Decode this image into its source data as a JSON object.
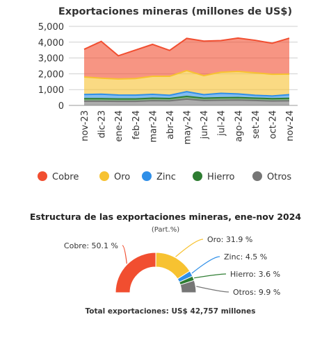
{
  "chart_data": [
    {
      "type": "area",
      "stacked": true,
      "title": "Exportaciones mineras (millones de US$)",
      "xlabel": "",
      "ylabel": "",
      "ylim": [
        0,
        5000
      ],
      "yticks": [
        0,
        1000,
        2000,
        3000,
        4000,
        5000
      ],
      "ytick_labels": [
        "0",
        "1,000",
        "2,000",
        "3,000",
        "4,000",
        "5,000"
      ],
      "grid": true,
      "legend_position": "bottom",
      "categories": [
        "nov-23",
        "dic-23",
        "ene-24",
        "feb-24",
        "mar-24",
        "abr-24",
        "may-24",
        "jun-24",
        "jul-24",
        "ago-24",
        "set-24",
        "oct-24",
        "nov-24"
      ],
      "series": [
        {
          "name": "Otros",
          "color": "#767676",
          "values": [
            270,
            270,
            260,
            260,
            300,
            290,
            400,
            310,
            330,
            340,
            310,
            280,
            290
          ]
        },
        {
          "name": "Hierro",
          "color": "#2e7d32",
          "values": [
            160,
            160,
            150,
            150,
            160,
            150,
            170,
            150,
            160,
            160,
            150,
            150,
            160
          ]
        },
        {
          "name": "Zinc",
          "color": "#2f8fe8",
          "values": [
            260,
            280,
            250,
            240,
            240,
            200,
            300,
            220,
            280,
            230,
            180,
            170,
            230
          ]
        },
        {
          "name": "Oro",
          "color": "#f7c231",
          "values": [
            1110,
            1010,
            1010,
            1050,
            1140,
            1200,
            1330,
            1200,
            1330,
            1420,
            1420,
            1370,
            1300
          ]
        },
        {
          "name": "Cobre",
          "color": "#f14e30",
          "values": [
            1750,
            2330,
            1470,
            1800,
            2020,
            1640,
            2040,
            2190,
            2000,
            2110,
            2060,
            1960,
            2270
          ]
        }
      ]
    },
    {
      "type": "pie",
      "variant": "half-donut",
      "title": "Estructura de las exportaciones mineras, ene-nov 2024",
      "subtitle": "(Part.%)",
      "slices": [
        {
          "name": "Cobre",
          "value": 50.1,
          "label": "Cobre: 50.1 %",
          "color": "#f14e30"
        },
        {
          "name": "Oro",
          "value": 31.9,
          "label": "Oro: 31.9 %",
          "color": "#f7c231"
        },
        {
          "name": "Zinc",
          "value": 4.5,
          "label": "Zinc: 4.5 %",
          "color": "#2f8fe8"
        },
        {
          "name": "Hierro",
          "value": 3.6,
          "label": "Hierro: 3.6 %",
          "color": "#2e7d32"
        },
        {
          "name": "Otros",
          "value": 9.9,
          "label": "Otros: 9.9 %",
          "color": "#767676"
        }
      ],
      "footer": "Total exportaciones:  US$ 42,757 millones"
    }
  ]
}
